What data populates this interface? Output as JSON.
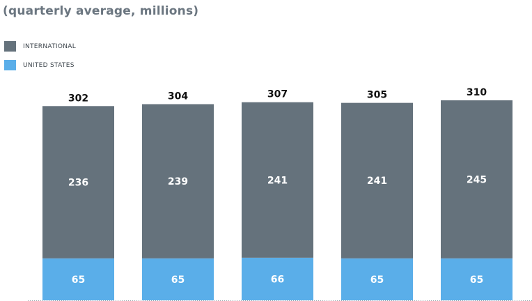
{
  "subtitle": "(quarterly average, millions)",
  "legend": [
    {
      "label": "INTERNATIONAL",
      "color": "#65727c"
    },
    {
      "label": "UNITED STATES",
      "color": "#5aaee9"
    }
  ],
  "chart_data": {
    "type": "bar",
    "stacked": true,
    "title": "",
    "subtitle": "(quarterly average, millions)",
    "categories": [
      "",
      "",
      "",
      "",
      ""
    ],
    "series": [
      {
        "name": "UNITED STATES",
        "color": "#5aaee9",
        "values": [
          65,
          65,
          66,
          65,
          65
        ]
      },
      {
        "name": "INTERNATIONAL",
        "color": "#65727c",
        "values": [
          236,
          239,
          241,
          241,
          245
        ]
      }
    ],
    "totals": [
      302,
      304,
      307,
      305,
      310
    ],
    "xlabel": "",
    "ylabel": "",
    "ylim": [
      0,
      310
    ],
    "grid": false,
    "legend_position": "top-left"
  }
}
